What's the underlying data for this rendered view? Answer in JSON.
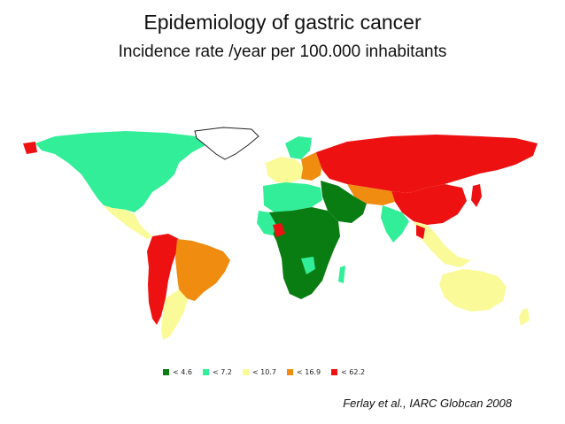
{
  "slide": {
    "title": "Epidemiology of gastric cancer",
    "subtitle": "Incidence rate /year per 100.000 inhabitants",
    "citation": "Ferlay et al., IARC Globcan 2008"
  },
  "legend": [
    {
      "label": "< 4.6",
      "color": "#0a7d12"
    },
    {
      "label": "< 7.2",
      "color": "#33ee99"
    },
    {
      "label": "< 10.7",
      "color": "#fafa99"
    },
    {
      "label": "< 16.9",
      "color": "#f08c10"
    },
    {
      "label": "< 62.2",
      "color": "#ee1111"
    }
  ],
  "map_regions": [
    {
      "name": "North America",
      "class": "< 7.2"
    },
    {
      "name": "Greenland",
      "class": "no data"
    },
    {
      "name": "Central America",
      "class": "< 10.7"
    },
    {
      "name": "Andean South America",
      "class": "< 62.2"
    },
    {
      "name": "Brazil",
      "class": "< 16.9"
    },
    {
      "name": "Southern Cone",
      "class": "< 10.7"
    },
    {
      "name": "Western Europe",
      "class": "< 10.7"
    },
    {
      "name": "Eastern Europe",
      "class": "< 16.9"
    },
    {
      "name": "Russia",
      "class": "< 62.2"
    },
    {
      "name": "China",
      "class": "< 62.2"
    },
    {
      "name": "Japan",
      "class": "< 62.2"
    },
    {
      "name": "Northern Africa",
      "class": "< 7.2"
    },
    {
      "name": "Sub-Saharan Africa",
      "class": "< 4.6"
    },
    {
      "name": "Middle East",
      "class": "< 4.6"
    },
    {
      "name": "Central Asia",
      "class": "< 16.9"
    },
    {
      "name": "India",
      "class": "< 7.2"
    },
    {
      "name": "Southeast Asia",
      "class": "< 10.7"
    },
    {
      "name": "Australia",
      "class": "< 10.7"
    }
  ]
}
